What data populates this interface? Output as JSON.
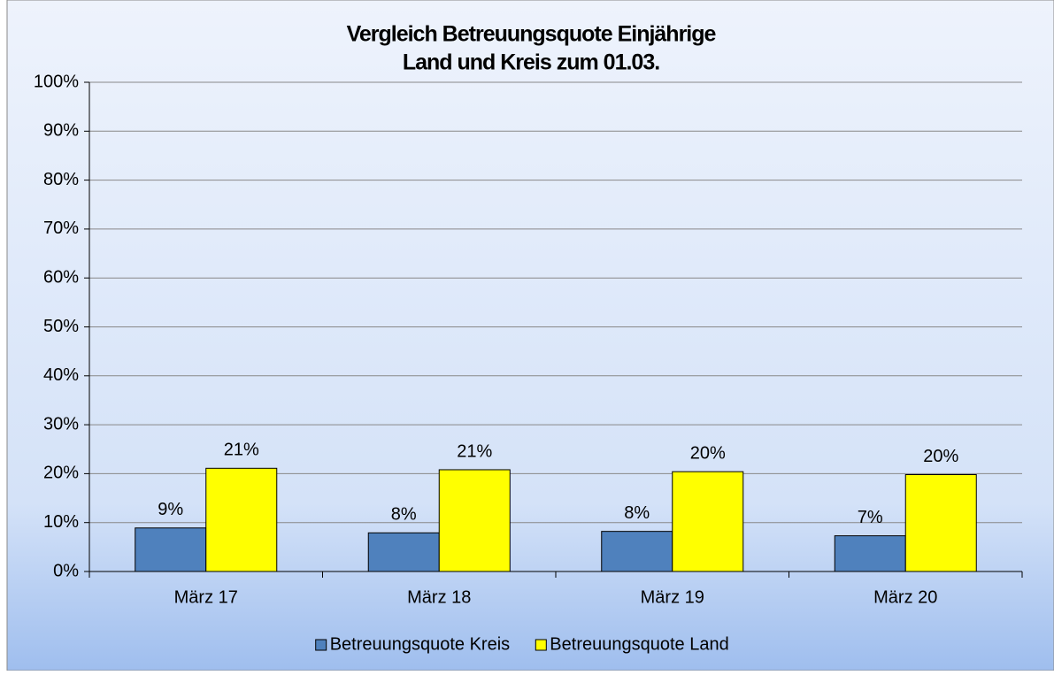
{
  "chart_data": {
    "type": "bar",
    "title": [
      "Vergleich Betreuungsquote Einjährige",
      "Land und Kreis zum 01.03."
    ],
    "categories": [
      "März 17",
      "März 18",
      "März 19",
      "März 20"
    ],
    "series": [
      {
        "name": "Betreuungsquote Kreis",
        "color": "#4f81bd",
        "values": [
          8.9,
          7.9,
          8.2,
          7.3
        ],
        "value_labels": [
          "9%",
          "8%",
          "8%",
          "7%"
        ]
      },
      {
        "name": "Betreuungsquote Land",
        "color": "#ffff00",
        "values": [
          21.1,
          20.8,
          20.4,
          19.8
        ],
        "value_labels": [
          "21%",
          "21%",
          "20%",
          "20%"
        ]
      }
    ],
    "ylim": [
      0,
      100
    ],
    "yticks": [
      {
        "value": 0,
        "label": "0%"
      },
      {
        "value": 10,
        "label": "10%"
      },
      {
        "value": 20,
        "label": "20%"
      },
      {
        "value": 30,
        "label": "30%"
      },
      {
        "value": 40,
        "label": "40%"
      },
      {
        "value": 50,
        "label": "50%"
      },
      {
        "value": 60,
        "label": "60%"
      },
      {
        "value": 70,
        "label": "70%"
      },
      {
        "value": 80,
        "label": "80%"
      },
      {
        "value": 90,
        "label": "90%"
      },
      {
        "value": 100,
        "label": "100%"
      }
    ],
    "grid": true,
    "legend": "bottom"
  }
}
